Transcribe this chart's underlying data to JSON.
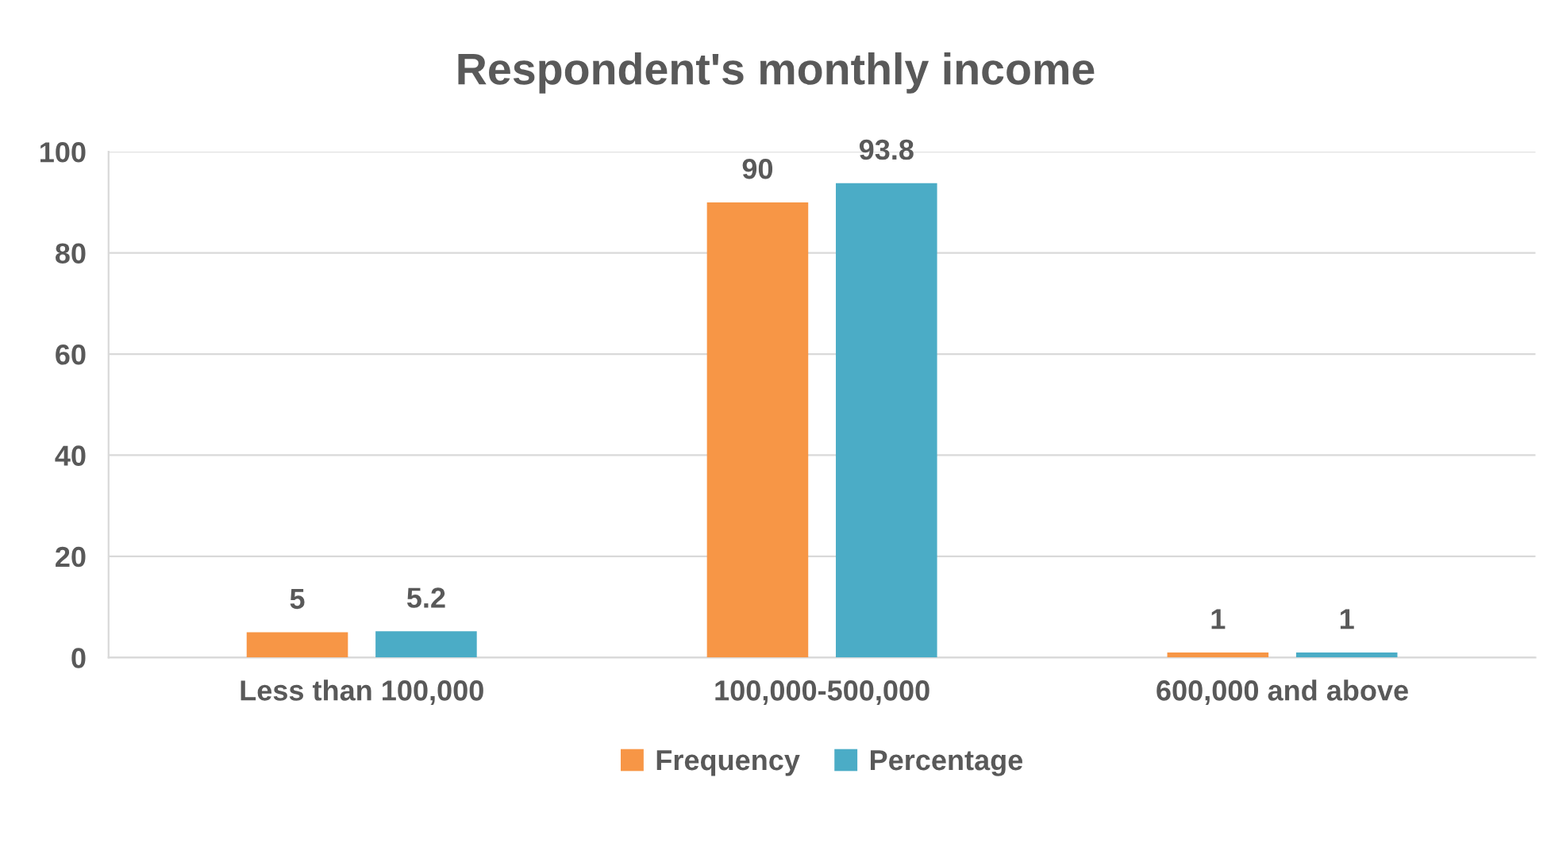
{
  "chart_data": {
    "type": "bar",
    "title": "Respondent's monthly income",
    "categories": [
      "Less than 100,000",
      "100,000-500,000",
      "600,000 and above"
    ],
    "series": [
      {
        "name": "Frequency",
        "color": "#f79646",
        "values": [
          5,
          90,
          1
        ]
      },
      {
        "name": "Percentage",
        "color": "#4bacc6",
        "values": [
          5.2,
          93.8,
          1
        ]
      }
    ],
    "ylim": [
      0,
      100
    ],
    "yticks": [
      0,
      20,
      40,
      60,
      80,
      100
    ],
    "grid": "y",
    "legend": "bottom",
    "data_labels": true
  }
}
